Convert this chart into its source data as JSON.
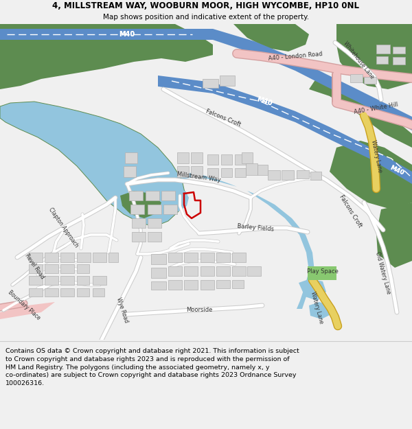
{
  "title": "4, MILLSTREAM WAY, WOOBURN MOOR, HIGH WYCOMBE, HP10 0NL",
  "subtitle": "Map shows position and indicative extent of the property.",
  "title_fontsize": 8.5,
  "subtitle_fontsize": 7.5,
  "footer_text": "Contains OS data © Crown copyright and database right 2021. This information is subject\nto Crown copyright and database rights 2023 and is reproduced with the permission of\nHM Land Registry. The polygons (including the associated geometry, namely x, y\nco-ordinates) are subject to Crown copyright and database rights 2023 Ordnance Survey\n100026316.",
  "footer_fontsize": 6.8,
  "bg_color": "#f0f0f0",
  "map_bg": "#f8f8f8",
  "green_dark": "#5d8c50",
  "green_med": "#7aaa65",
  "blue_water": "#92c5de",
  "blue_motor": "#5b8cc8",
  "building_fill": "#d6d6d6",
  "building_edge": "#b0b0b0",
  "pink_road": "#f2c4c4",
  "yellow_road": "#e8d060",
  "road_fill": "#ffffff",
  "road_edge": "#cccccc",
  "property_red": "#cc0000",
  "play_green": "#88c870",
  "text_dark": "#333333",
  "text_white": "#ffffff"
}
